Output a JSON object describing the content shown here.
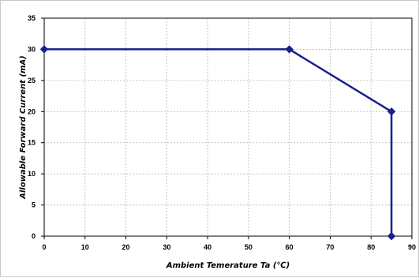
{
  "chart_data": {
    "type": "line",
    "title": "",
    "xlabel": "Ambient Temerature Ta (℃)",
    "ylabel": "Allowable Forward Current (mA)",
    "xlim": [
      0,
      90
    ],
    "ylim": [
      0,
      35
    ],
    "x_ticks": [
      0,
      10,
      20,
      30,
      40,
      50,
      60,
      70,
      80,
      90
    ],
    "y_ticks": [
      0,
      5,
      10,
      15,
      20,
      25,
      30,
      35
    ],
    "grid": true,
    "legend": "none",
    "series": [
      {
        "color": "#1a1f8c",
        "marker": "diamond",
        "x": [
          0,
          60,
          85,
          85
        ],
        "y": [
          30,
          30,
          20,
          0
        ]
      }
    ]
  }
}
